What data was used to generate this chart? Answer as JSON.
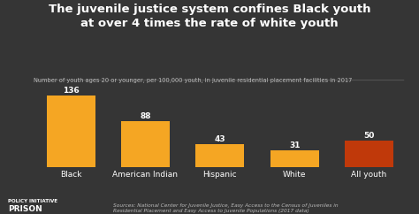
{
  "title": "The juvenile justice system confines Black youth\nat over 4 times the rate of white youth",
  "subtitle": "Number of youth ages 20 or younger, per 100,000 youth, in juvenile residential placement facilities in 2017",
  "categories": [
    "Black",
    "American Indian",
    "Hispanic",
    "White",
    "All youth"
  ],
  "values": [
    136,
    88,
    43,
    31,
    50
  ],
  "bar_colors": [
    "#F5A623",
    "#F5A623",
    "#F5A623",
    "#F5A623",
    "#C0390A"
  ],
  "background_color": "#353535",
  "text_color": "#ffffff",
  "subtitle_color": "#bbbbbb",
  "source_text": "Sources: National Center for Juvenile Justice, Easy Access to the Census of Juveniles in\nResidential Placement and Easy Access to Juvenile Populations (2017 data)",
  "title_fontsize": 9.5,
  "subtitle_fontsize": 4.8,
  "label_fontsize": 6.5,
  "bar_label_fontsize": 6.5,
  "source_fontsize": 4.2
}
